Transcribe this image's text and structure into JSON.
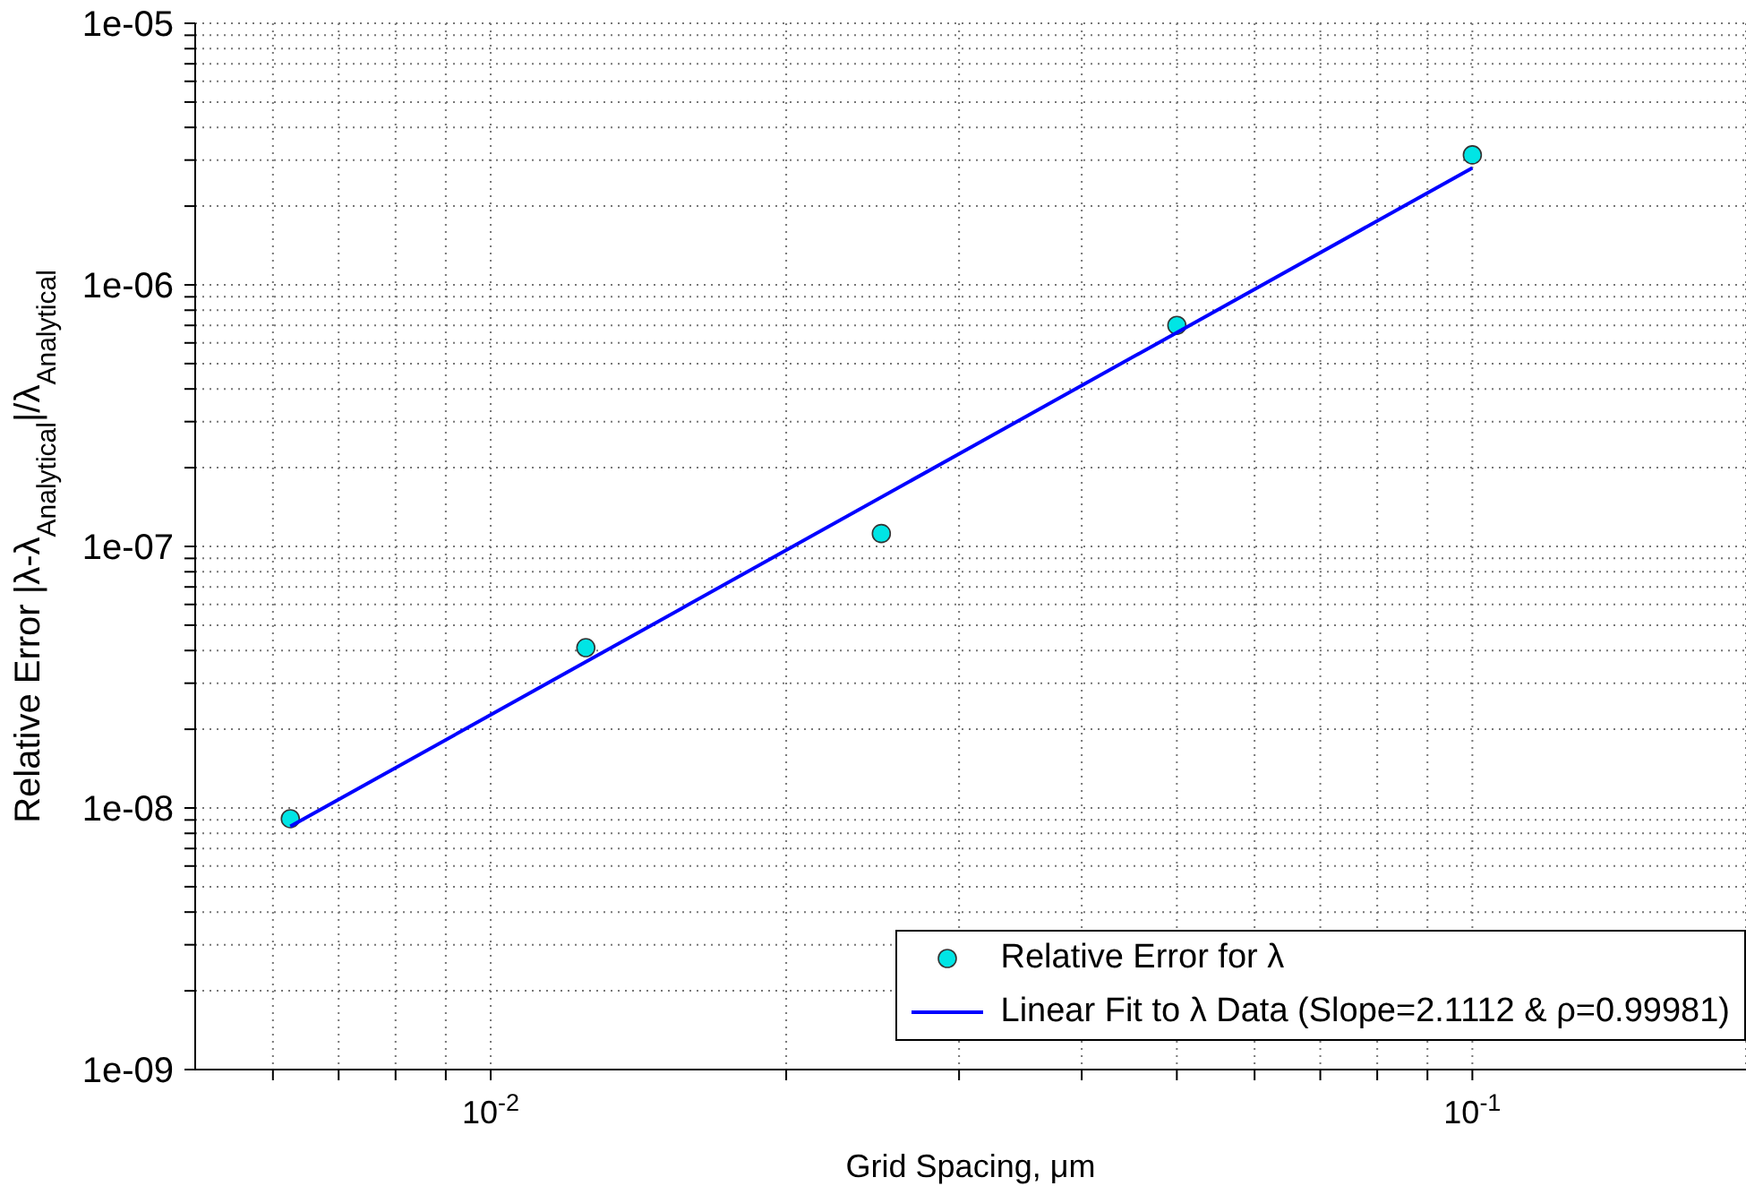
{
  "chart_data": {
    "type": "scatter",
    "xlabel": "Grid Spacing, μm",
    "ylabel": "Relative Error |λ-λ$_{Analytical}$|/λ$_{Analytical}$",
    "log": "xy",
    "grid": true,
    "legend": "bottom right",
    "marker": "circle",
    "xlim": [
      0.005,
      0.19
    ],
    "ylim": [
      1e-09,
      1e-05
    ],
    "xticks": [
      {
        "value": 0.006,
        "label": null
      },
      {
        "value": 0.007,
        "label": null
      },
      {
        "value": 0.008,
        "label": null
      },
      {
        "value": 0.009,
        "label": null
      },
      {
        "value": 0.01,
        "label": "10$^{-2}$"
      },
      {
        "value": 0.02,
        "label": null
      },
      {
        "value": 0.03,
        "label": null
      },
      {
        "value": 0.04,
        "label": null
      },
      {
        "value": 0.05,
        "label": null
      },
      {
        "value": 0.06,
        "label": null
      },
      {
        "value": 0.07,
        "label": null
      },
      {
        "value": 0.08,
        "label": null
      },
      {
        "value": 0.09,
        "label": null
      },
      {
        "value": 0.1,
        "label": "10$^{-1}$"
      }
    ],
    "yticks": [
      {
        "value": 1e-09,
        "label": "1e-09"
      },
      {
        "value": 2e-09,
        "label": null
      },
      {
        "value": 3e-09,
        "label": null
      },
      {
        "value": 4e-09,
        "label": null
      },
      {
        "value": 5e-09,
        "label": null
      },
      {
        "value": 6e-09,
        "label": null
      },
      {
        "value": 7e-09,
        "label": null
      },
      {
        "value": 8e-09,
        "label": null
      },
      {
        "value": 9e-09,
        "label": null
      },
      {
        "value": 1e-08,
        "label": "1e-08"
      },
      {
        "value": 2e-08,
        "label": null
      },
      {
        "value": 3e-08,
        "label": null
      },
      {
        "value": 4e-08,
        "label": null
      },
      {
        "value": 5e-08,
        "label": null
      },
      {
        "value": 6e-08,
        "label": null
      },
      {
        "value": 7e-08,
        "label": null
      },
      {
        "value": 8e-08,
        "label": null
      },
      {
        "value": 9e-08,
        "label": null
      },
      {
        "value": 1e-07,
        "label": "1e-07"
      },
      {
        "value": 2e-07,
        "label": null
      },
      {
        "value": 3e-07,
        "label": null
      },
      {
        "value": 4e-07,
        "label": null
      },
      {
        "value": 5e-07,
        "label": null
      },
      {
        "value": 6e-07,
        "label": null
      },
      {
        "value": 7e-07,
        "label": null
      },
      {
        "value": 8e-07,
        "label": null
      },
      {
        "value": 9e-07,
        "label": null
      },
      {
        "value": 1e-06,
        "label": "1e-06"
      },
      {
        "value": 2e-06,
        "label": null
      },
      {
        "value": 3e-06,
        "label": null
      },
      {
        "value": 4e-06,
        "label": null
      },
      {
        "value": 5e-06,
        "label": null
      },
      {
        "value": 6e-06,
        "label": null
      },
      {
        "value": 7e-06,
        "label": null
      },
      {
        "value": 8e-06,
        "label": null
      },
      {
        "value": 9e-06,
        "label": null
      },
      {
        "value": 1e-05,
        "label": "1e-05"
      }
    ],
    "series": [
      {
        "name": "Relative Error for λ",
        "type": "scatter",
        "color": "#00e5e5",
        "x": [
          0.00625,
          0.0125,
          0.025,
          0.05,
          0.1
        ],
        "values": [
          9.1e-09,
          4.1e-08,
          1.12e-07,
          7e-07,
          3.14e-06
        ]
      },
      {
        "name": "Linear Fit to λ Data (Slope=2.1112 & ρ=0.99981)",
        "type": "line",
        "marker": "none",
        "line_style": "solid",
        "color": "#0000ff",
        "x": [
          0.00625,
          0.1
        ],
        "values": [
          8.5e-09,
          2.8e-06
        ]
      }
    ]
  }
}
